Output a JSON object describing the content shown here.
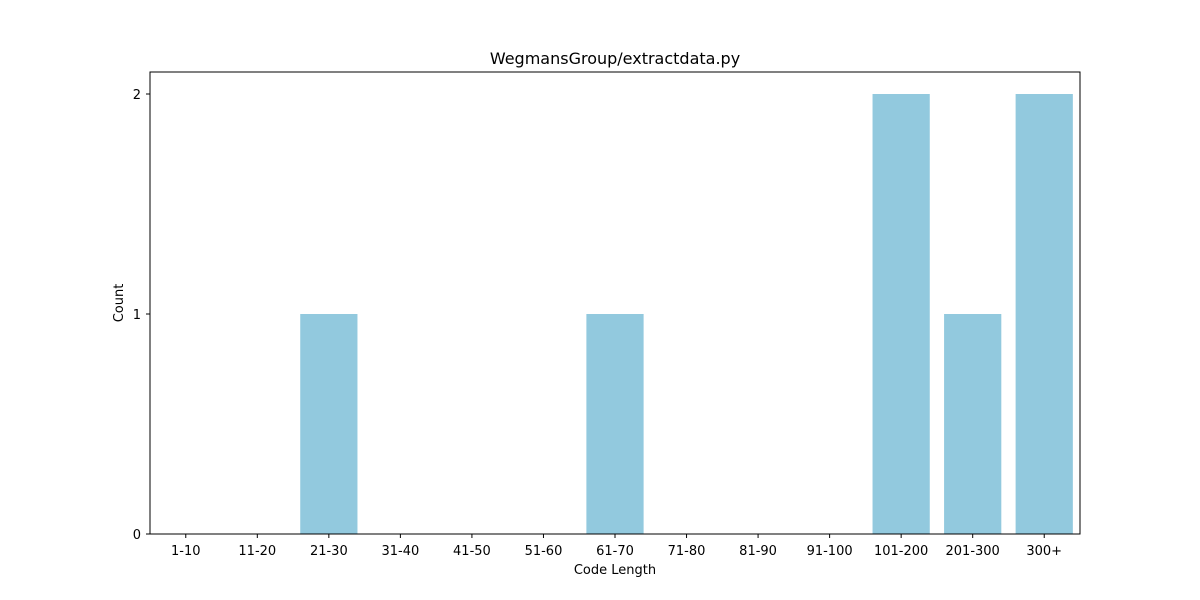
{
  "chart_data": {
    "type": "bar",
    "title": "WegmansGroup/extractdata.py",
    "xlabel": "Code Length",
    "ylabel": "Count",
    "categories": [
      "1-10",
      "11-20",
      "21-30",
      "31-40",
      "41-50",
      "51-60",
      "61-70",
      "71-80",
      "81-90",
      "91-100",
      "101-200",
      "201-300",
      "300+"
    ],
    "values": [
      0,
      0,
      1,
      0,
      0,
      0,
      1,
      0,
      0,
      0,
      2,
      1,
      2
    ],
    "yticks": [
      0,
      1,
      2
    ],
    "ylim": [
      0,
      2.1
    ],
    "grid": false,
    "bar_color": "#92c9de"
  }
}
